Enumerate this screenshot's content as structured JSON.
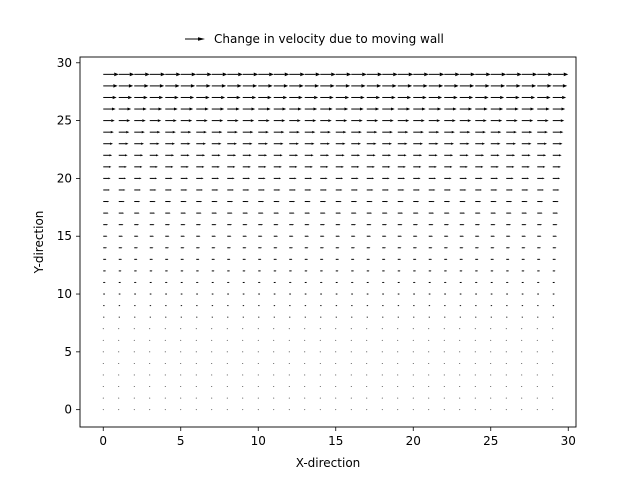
{
  "chart_data": {
    "type": "quiver",
    "title": "",
    "xlabel": "X-direction",
    "ylabel": "Y-direction",
    "xlim": [
      -1.5,
      30.5
    ],
    "ylim": [
      -1.5,
      30.5
    ],
    "xticks": [
      0,
      5,
      10,
      15,
      20,
      25,
      30
    ],
    "yticks": [
      0,
      5,
      10,
      15,
      20,
      25,
      30
    ],
    "grid": false,
    "legend": {
      "position": "top-center",
      "entries": [
        "Change in velocity due to moving wall"
      ]
    },
    "series": [
      {
        "name": "Change in velocity due to moving wall",
        "color": "#000000",
        "field": {
          "x": {
            "start": 0,
            "stop": 29,
            "step": 1
          },
          "y": {
            "start": 0,
            "stop": 29,
            "step": 1
          },
          "u": "(y / 29)^2",
          "v": 0,
          "arrow_length_at_u1": 1.0
        }
      }
    ]
  }
}
